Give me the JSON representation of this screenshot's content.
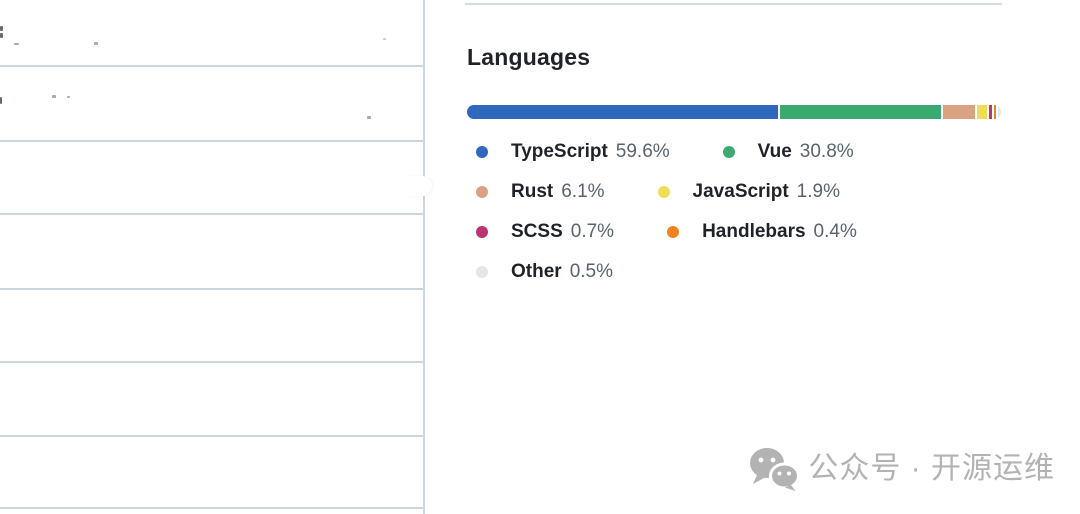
{
  "languages": {
    "title": "Languages",
    "items": [
      {
        "name": "TypeScript",
        "percent": "59.6%",
        "color": "#3068be"
      },
      {
        "name": "Vue",
        "percent": "30.8%",
        "color": "#3aaa70"
      },
      {
        "name": "Rust",
        "percent": "6.1%",
        "color": "#dba183"
      },
      {
        "name": "JavaScript",
        "percent": "1.9%",
        "color": "#eedd55"
      },
      {
        "name": "SCSS",
        "percent": "0.7%",
        "color": "#bb3570"
      },
      {
        "name": "Handlebars",
        "percent": "0.4%",
        "color": "#f0821e"
      },
      {
        "name": "Other",
        "percent": "0.5%",
        "color": "#e4e6e8"
      }
    ]
  },
  "chart_data": {
    "type": "bar",
    "title": "Languages",
    "categories": [
      "TypeScript",
      "Vue",
      "Rust",
      "JavaScript",
      "SCSS",
      "Handlebars",
      "Other"
    ],
    "values": [
      59.6,
      30.8,
      6.1,
      1.9,
      0.7,
      0.4,
      0.5
    ],
    "unit": "%",
    "legend_position": "below-bar"
  },
  "watermark": {
    "text": "公众号 · 开源运维",
    "icon": "wechat-icon",
    "color": "#b3b3b3"
  },
  "colors": {
    "divider": "#d6dce2",
    "table_border": "#ccd6dd",
    "language_name_text": "#1f2328",
    "language_percent_text": "#59636e",
    "background": "#ffffff"
  }
}
